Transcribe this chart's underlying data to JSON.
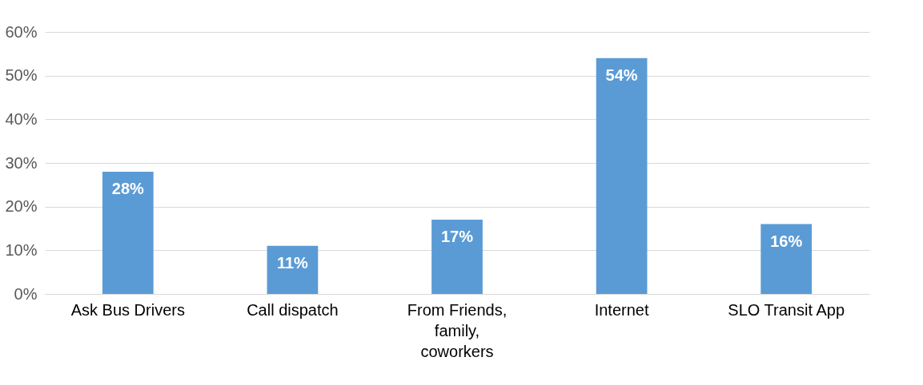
{
  "chart_data": {
    "type": "bar",
    "categories": [
      "Ask Bus Drivers",
      "Call dispatch",
      "From Friends, family, coworkers",
      "Internet",
      "SLO Transit App"
    ],
    "values": [
      28,
      11,
      17,
      54,
      16
    ],
    "value_labels": [
      "28%",
      "11%",
      "17%",
      "54%",
      "16%"
    ],
    "color": "#5b9bd5",
    "ylim": [
      0,
      60
    ],
    "yticks": [
      {
        "value": 0,
        "label": "0%"
      },
      {
        "value": 10,
        "label": "10%"
      },
      {
        "value": 20,
        "label": "20%"
      },
      {
        "value": 30,
        "label": "30%"
      },
      {
        "value": 40,
        "label": "40%"
      },
      {
        "value": 50,
        "label": "50%"
      },
      {
        "value": 60,
        "label": "60%"
      }
    ],
    "grid": "y"
  }
}
